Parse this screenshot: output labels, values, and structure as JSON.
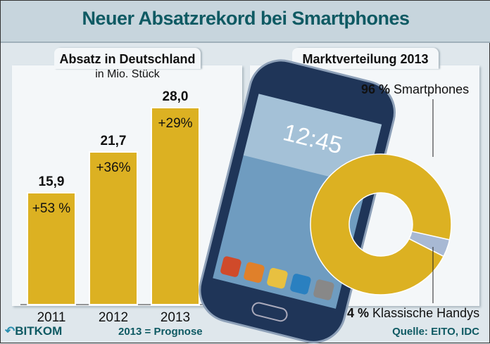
{
  "title": "Neuer Absatzrekord bei Smartphones",
  "chart_data": [
    {
      "type": "bar",
      "title": "Absatz in Deutschland",
      "subtitle": "in Mio. Stück",
      "categories": [
        "2011",
        "2012",
        "2013"
      ],
      "values": [
        15.9,
        21.7,
        28.0
      ],
      "value_labels": [
        "15,9",
        "21,7",
        "28,0"
      ],
      "growth_labels": [
        "+53 %",
        "+36%",
        "+29%"
      ],
      "color": "#dcb122",
      "ylim": [
        0,
        30
      ]
    },
    {
      "type": "pie",
      "title": "Marktverteilung 2013",
      "style": "donut",
      "slices": [
        {
          "name": "Smartphones",
          "value": 96,
          "label": "96 %",
          "color": "#dcb122"
        },
        {
          "name": "Klassische Handys",
          "value": 4,
          "label": "4 %",
          "color": "#a8b9d4"
        }
      ]
    }
  ],
  "footer": {
    "logo": "BITKOM",
    "note": "2013 = Prognose",
    "source": "Quelle: EITO, IDC"
  },
  "phone": {
    "time": "12:45"
  }
}
